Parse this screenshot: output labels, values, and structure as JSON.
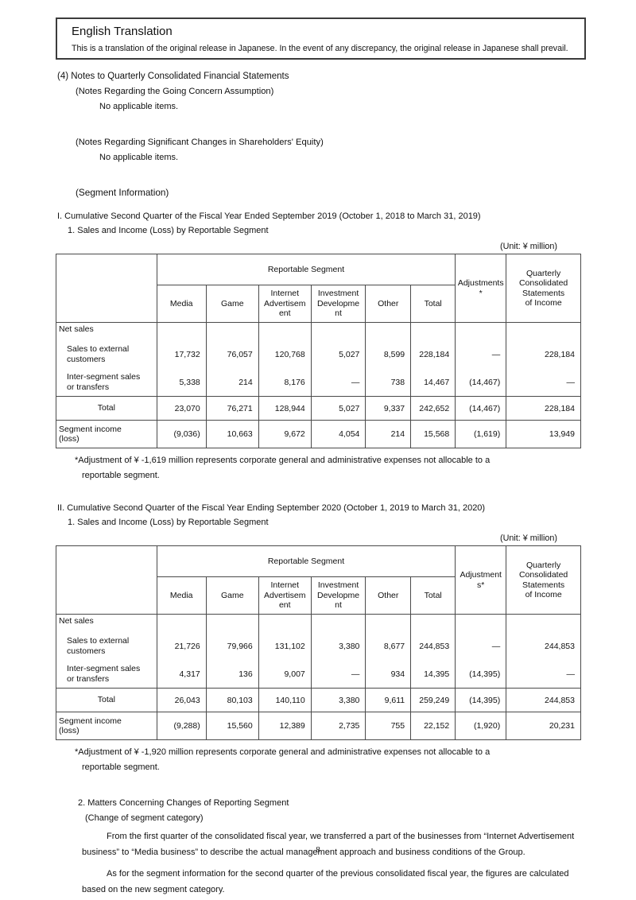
{
  "colors": {
    "text": "#111111",
    "table_border": "#4a4a4a",
    "box_border": "#3c3c3c"
  },
  "page": {
    "number": "8"
  },
  "header_box": {
    "title": "English Translation",
    "disclaimer": "This is a translation of the original release in Japanese. In the event of any discrepancy, the original release in Japanese shall prevail."
  },
  "notes": {
    "heading": "(4) Notes to Quarterly Consolidated Financial Statements",
    "going_concern": {
      "title": "(Notes Regarding the Going Concern Assumption)",
      "body": "No applicable items."
    },
    "shareholders_equity": {
      "title": "(Notes Regarding Significant Changes in Shareholders' Equity)",
      "body": "No applicable items."
    },
    "segment_info_title": "(Segment Information)"
  },
  "sections": [
    {
      "heading": "I. Cumulative Second Quarter of the Fiscal Year Ended September 2019 (October 1, 2018 to March 31, 2019)",
      "subheading": "1. Sales and Income (Loss) by Reportable Segment",
      "unit_label": "(Unit: ¥ million)",
      "table": {
        "group_header": "Reportable Segment",
        "adjustments_header": "Adjustments\n*",
        "quarterly_header": "Quarterly\nConsolidated\nStatements\nof Income",
        "segments": [
          "Media",
          "Game",
          "Internet\nAdvertisem\nent",
          "Investment\nDevelopme\nnt",
          "Other",
          "Total"
        ],
        "rows": [
          {
            "type": "group",
            "label": "Net sales",
            "values": [
              "",
              "",
              "",
              "",
              "",
              "",
              "",
              ""
            ]
          },
          {
            "type": "sub",
            "label": "Sales to external\ncustomers",
            "values": [
              "17,732",
              "76,057",
              "120,768",
              "5,027",
              "8,599",
              "228,184",
              "—",
              "228,184"
            ]
          },
          {
            "type": "sub",
            "label": "Inter-segment sales\nor transfers",
            "values": [
              "5,338",
              "214",
              "8,176",
              "—",
              "738",
              "14,467",
              "(14,467)",
              "—"
            ]
          },
          {
            "type": "total",
            "label": "Total",
            "values": [
              "23,070",
              "76,271",
              "128,944",
              "5,027",
              "9,337",
              "242,652",
              "(14,467)",
              "228,184"
            ]
          },
          {
            "type": "income",
            "label": "Segment income\n(loss)",
            "values": [
              "(9,036)",
              "10,663",
              "9,672",
              "4,054",
              "214",
              "15,568",
              "(1,619)",
              "13,949"
            ]
          }
        ]
      },
      "footnote": {
        "line1": "*Adjustment of ¥ -1,619 million represents corporate general and administrative expenses not allocable to a",
        "line2": "reportable segment."
      }
    },
    {
      "heading": "II. Cumulative Second Quarter of the Fiscal Year Ending September 2020 (October 1, 2019 to March 31, 2020)",
      "subheading": "1. Sales and Income (Loss) by Reportable Segment",
      "unit_label": "(Unit: ¥ million)",
      "table": {
        "group_header": "Reportable Segment",
        "adjustments_header": "Adjustment\ns*",
        "quarterly_header": "Quarterly\nConsolidated\nStatements\nof Income",
        "segments": [
          "Media",
          "Game",
          "Internet\nAdvertisem\nent",
          "Investment\nDevelopme\nnt",
          "Other",
          "Total"
        ],
        "rows": [
          {
            "type": "group",
            "label": "Net sales",
            "values": [
              "",
              "",
              "",
              "",
              "",
              "",
              "",
              ""
            ]
          },
          {
            "type": "sub",
            "label": "Sales to external\ncustomers",
            "values": [
              "21,726",
              "79,966",
              "131,102",
              "3,380",
              "8,677",
              "244,853",
              "—",
              "244,853"
            ]
          },
          {
            "type": "sub",
            "label": "Inter-segment sales\nor transfers",
            "values": [
              "4,317",
              "136",
              "9,007",
              "—",
              "934",
              "14,395",
              "(14,395)",
              "—"
            ]
          },
          {
            "type": "total",
            "label": "Total",
            "values": [
              "26,043",
              "80,103",
              "140,110",
              "3,380",
              "9,611",
              "259,249",
              "(14,395)",
              "244,853"
            ]
          },
          {
            "type": "income",
            "label": "Segment income\n(loss)",
            "values": [
              "(9,288)",
              "15,560",
              "12,389",
              "2,735",
              "755",
              "22,152",
              "(1,920)",
              "20,231"
            ]
          }
        ]
      },
      "footnote": {
        "line1": "*Adjustment of ¥ -1,920 million represents corporate general and administrative expenses not allocable to a",
        "line2": "reportable segment."
      }
    }
  ],
  "matters": {
    "heading": "2. Matters Concerning Changes of Reporting Segment",
    "subheading": "(Change of segment category)",
    "para1": "From the first quarter of the consolidated fiscal year, we transferred a part of the businesses from “Internet Advertisement business” to “Media business” to describe the actual management approach and business conditions of the Group.",
    "para2": "As for the segment information for the second quarter of the previous consolidated fiscal year, the figures are calculated based on the new segment category."
  }
}
